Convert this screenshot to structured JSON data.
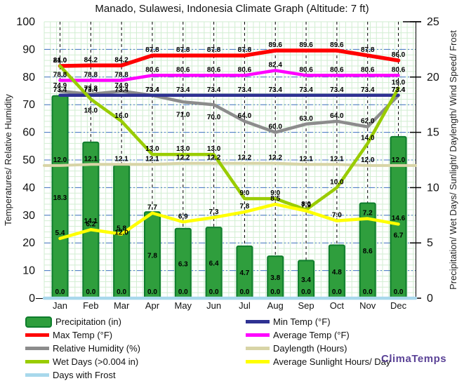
{
  "title": "Manado, Sulawesi, Indonesia Climate Graph (Altitude: 7 ft)",
  "branding": "ClimaTemps",
  "axes": {
    "left_label": "Temperatures/ Relative Humidity",
    "right_label": "Precipitation/ Wet Days/ Sunlight/ Daylength/ Wind Speed/ Frost",
    "left_ticks": [
      0,
      10,
      20,
      30,
      40,
      50,
      60,
      70,
      80,
      90,
      100
    ],
    "right_ticks": [
      0,
      5,
      10,
      15,
      20,
      25
    ],
    "left_range": [
      0,
      100
    ],
    "right_range": [
      0,
      25
    ]
  },
  "colors": {
    "bar_fill": "#2f9e3d",
    "bar_border": "#0e7d2c",
    "major_grid": "#4472c4",
    "minor_grid": "#d2eed2",
    "month_grid": "#000000",
    "axis_line": "#000000",
    "label_text": "#000000"
  },
  "chart_data": {
    "type": "combo",
    "title": "Manado, Sulawesi, Indonesia Climate Graph (Altitude: 7 ft)",
    "categories": [
      "Jan",
      "Feb",
      "Mar",
      "Apr",
      "May",
      "Jun",
      "Jul",
      "Aug",
      "Sep",
      "Oct",
      "Nov",
      "Dec"
    ],
    "ylim_left": [
      0,
      100
    ],
    "ylim_right": [
      0,
      25
    ],
    "grid": "on",
    "legend_position": "bottom",
    "series": [
      {
        "name": "Precipitation (in)",
        "type": "bar",
        "axis": "right",
        "color": "#2f9e3d",
        "border": "#0e7d2c",
        "values": [
          18.3,
          14.1,
          12.0,
          7.8,
          6.3,
          6.4,
          4.7,
          3.8,
          3.4,
          4.8,
          8.6,
          14.6
        ]
      },
      {
        "name": "Days with Frost",
        "type": "line",
        "axis": "right",
        "color": "#a8d8ec",
        "width": 4.5,
        "extend": true,
        "label_dy": -6,
        "values": [
          0.0,
          0.0,
          0.0,
          0.0,
          0.0,
          0.0,
          0.0,
          0.0,
          0.0,
          0.0,
          0.0,
          0.0
        ]
      },
      {
        "name": "Daylength (Hours)",
        "type": "line",
        "axis": "right",
        "color": "#d8d4a6",
        "width": 4,
        "extend": true,
        "label_dy": -5,
        "values": [
          12.0,
          12.1,
          12.1,
          12.1,
          12.2,
          12.2,
          12.2,
          12.2,
          12.1,
          12.1,
          12.0,
          12.0
        ]
      },
      {
        "name": "Relative Humidity (%)",
        "type": "line",
        "axis": "left",
        "color": "#8c8c8c",
        "width": 4.5,
        "label_dy": -5,
        "dys": {
          "4": 13,
          "5": 13
        },
        "values": [
          74.9,
          73.8,
          74.9,
          73.4,
          71.0,
          70.0,
          64.0,
          60.0,
          63.0,
          64.0,
          62.0,
          73.4
        ]
      },
      {
        "name": "Min Temp (°F)",
        "type": "line",
        "axis": "left",
        "color": "#2e3192",
        "width": 4.5,
        "label_dy": -5,
        "values": [
          73.4,
          73.4,
          73.4,
          73.4,
          73.4,
          73.4,
          73.4,
          73.4,
          73.4,
          73.4,
          73.4,
          73.4
        ]
      },
      {
        "name": "Average Temp (°F)",
        "type": "line",
        "axis": "left",
        "color": "#ff00ff",
        "width": 4.5,
        "label_dy": -5,
        "values": [
          78.8,
          78.8,
          78.8,
          80.6,
          80.6,
          80.6,
          80.6,
          82.4,
          80.6,
          80.6,
          80.6,
          80.6
        ]
      },
      {
        "name": "Max Temp (°F)",
        "type": "line",
        "axis": "left",
        "color": "#ff0000",
        "width": 5.5,
        "label_dy": -5,
        "values": [
          84.0,
          84.2,
          84.2,
          87.8,
          87.8,
          87.8,
          87.8,
          89.6,
          89.6,
          89.6,
          87.8,
          86.0
        ]
      },
      {
        "name": "Wet Days (>0.004 in)",
        "type": "line",
        "axis": "right",
        "color": "#99cc00",
        "width": 4.5,
        "label_dy": -5,
        "dys": {
          "1": 11
        },
        "values": [
          21.0,
          18.0,
          16.0,
          13.0,
          13.0,
          13.0,
          9.0,
          9.0,
          8.0,
          10.0,
          14.0,
          19.0
        ]
      },
      {
        "name": "Average Sunlight Hours/ Day",
        "type": "line",
        "axis": "right",
        "color": "#ffff00",
        "width": 4.5,
        "label_dy": -5,
        "dys": {
          "11": 11
        },
        "values": [
          5.4,
          6.2,
          5.8,
          7.7,
          6.9,
          7.3,
          7.8,
          8.5,
          7.9,
          7.0,
          7.2,
          6.7
        ]
      }
    ]
  },
  "legend": {
    "left": [
      {
        "label": "Precipitation (in)",
        "color": "#2f9e3d",
        "border": "#0e7d2c",
        "swatch": "bar",
        "key": "precipitation"
      },
      {
        "label": "Max Temp (°F)",
        "color": "#ff0000",
        "swatch": "line",
        "key": "max-temp"
      },
      {
        "label": "Relative Humidity (%)",
        "color": "#8c8c8c",
        "swatch": "line",
        "key": "relative-humidity"
      },
      {
        "label": "Wet Days (>0.004 in)",
        "color": "#99cc00",
        "swatch": "line",
        "key": "wet-days"
      },
      {
        "label": "Days with Frost",
        "color": "#a8d8ec",
        "swatch": "line",
        "key": "days-with-frost"
      }
    ],
    "right": [
      {
        "label": "Min Temp (°F)",
        "color": "#2e3192",
        "swatch": "line",
        "key": "min-temp"
      },
      {
        "label": "Average Temp (°F)",
        "color": "#ff00ff",
        "swatch": "line",
        "key": "average-temp"
      },
      {
        "label": "Daylength (Hours)",
        "color": "#d8d4a6",
        "swatch": "line",
        "key": "daylength"
      },
      {
        "label": "Average Sunlight Hours/ Day",
        "color": "#ffff00",
        "swatch": "line",
        "key": "sunlight-hours"
      }
    ]
  }
}
